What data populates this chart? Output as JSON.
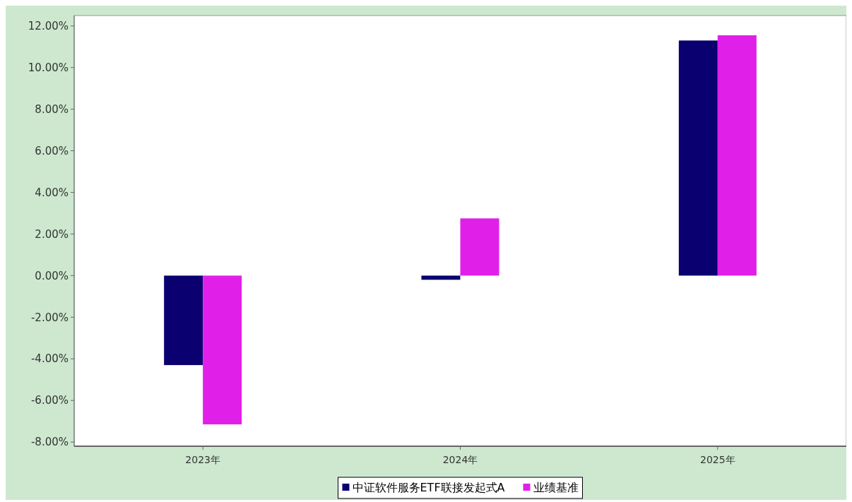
{
  "chart_data": {
    "type": "bar",
    "categories": [
      "2023年",
      "2024年",
      "2025年"
    ],
    "series": [
      {
        "name": "中证软件服务ETF联接发起式A",
        "color": "#0a0070",
        "values": [
          -4.3,
          -0.2,
          11.3
        ]
      },
      {
        "name": "业绩基准",
        "color": "#e020e8",
        "values": [
          -7.15,
          2.75,
          11.55
        ]
      }
    ],
    "ylim": [
      -8.2,
      12.5
    ],
    "yticks": [
      {
        "value": -8,
        "label": "-8.00%"
      },
      {
        "value": -6,
        "label": "-6.00%"
      },
      {
        "value": -4,
        "label": "-4.00%"
      },
      {
        "value": -2,
        "label": "-2.00%"
      },
      {
        "value": 0,
        "label": "0.00%"
      },
      {
        "value": 2,
        "label": "2.00%"
      },
      {
        "value": 4,
        "label": "4.00%"
      },
      {
        "value": 6,
        "label": "6.00%"
      },
      {
        "value": 8,
        "label": "8.00%"
      },
      {
        "value": 10,
        "label": "10.00%"
      },
      {
        "value": 12,
        "label": "12.00%"
      }
    ],
    "grid": false,
    "legend": "bottom"
  }
}
